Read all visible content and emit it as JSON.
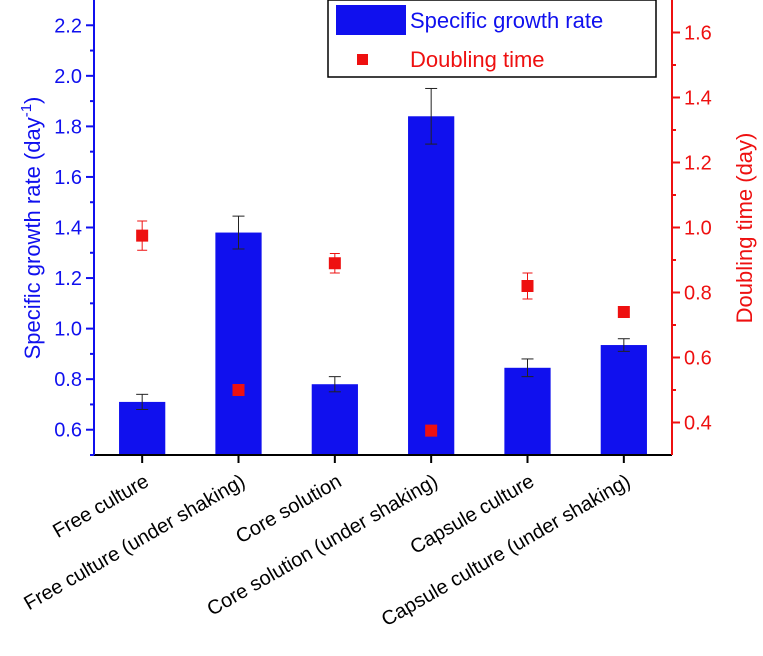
{
  "chart_data": {
    "type": "bar",
    "categories": [
      "Free culture",
      "Free culture (under shaking)",
      "Core solution",
      "Core solution (under shaking)",
      "Capsule culture",
      "Capsule culture (under shaking)"
    ],
    "series": [
      {
        "name": "Specific growth rate",
        "kind": "bar",
        "axis": "left",
        "color": "#1010EE",
        "values": [
          0.71,
          1.38,
          0.78,
          1.84,
          0.845,
          0.935
        ],
        "errors": [
          0.03,
          0.065,
          0.03,
          0.11,
          0.035,
          0.025
        ]
      },
      {
        "name": "Doubling time",
        "kind": "scatter",
        "axis": "right",
        "color": "#EE1010",
        "values": [
          0.975,
          0.5,
          0.89,
          0.375,
          0.82,
          0.74
        ],
        "errors": [
          0.045,
          0.012,
          0.03,
          0.01,
          0.04,
          0.015
        ]
      }
    ],
    "y_left": {
      "label_main": "Specific growth rate (day",
      "label_sup": "-1",
      "label_end": ")",
      "range": [
        0.5,
        2.3
      ],
      "ticks": [
        "0.6",
        "0.8",
        "1.0",
        "1.2",
        "1.4",
        "1.6",
        "1.8",
        "2.0",
        "2.2"
      ],
      "color": "#1010EE"
    },
    "y_right": {
      "label": "Doubling time (day)",
      "range": [
        0.3,
        1.7
      ],
      "ticks": [
        "0.4",
        "0.6",
        "0.8",
        "1.0",
        "1.2",
        "1.4",
        "1.6"
      ],
      "color": "#EE1010"
    },
    "legend": {
      "position": "top-right",
      "entries": [
        "Specific growth rate",
        "Doubling time"
      ]
    },
    "grid": false
  }
}
